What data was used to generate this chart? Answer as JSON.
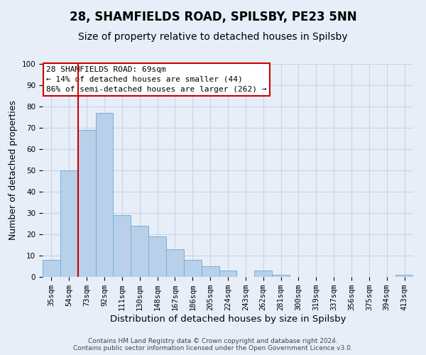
{
  "title": "28, SHAMFIELDS ROAD, SPILSBY, PE23 5NN",
  "subtitle": "Size of property relative to detached houses in Spilsby",
  "xlabel": "Distribution of detached houses by size in Spilsby",
  "ylabel": "Number of detached properties",
  "bar_labels": [
    "35sqm",
    "54sqm",
    "73sqm",
    "92sqm",
    "111sqm",
    "130sqm",
    "148sqm",
    "167sqm",
    "186sqm",
    "205sqm",
    "224sqm",
    "243sqm",
    "262sqm",
    "281sqm",
    "300sqm",
    "319sqm",
    "337sqm",
    "356sqm",
    "375sqm",
    "394sqm",
    "413sqm"
  ],
  "bar_values": [
    8,
    50,
    69,
    77,
    29,
    24,
    19,
    13,
    8,
    5,
    3,
    0,
    3,
    1,
    0,
    0,
    0,
    0,
    0,
    0,
    1
  ],
  "bar_color": "#b8d0ea",
  "bar_edgecolor": "#7aafd4",
  "property_label": "28 SHAMFIELDS ROAD: 69sqm",
  "annotation_line1": "← 14% of detached houses are smaller (44)",
  "annotation_line2": "86% of semi-detached houses are larger (262) →",
  "annotation_box_color": "#ffffff",
  "annotation_box_edgecolor": "#cc0000",
  "vline_color": "#cc0000",
  "vline_x": 1.5,
  "ylim": [
    0,
    100
  ],
  "yticks": [
    0,
    10,
    20,
    30,
    40,
    50,
    60,
    70,
    80,
    90,
    100
  ],
  "grid_color": "#c8d4e8",
  "background_color": "#e8eef8",
  "footer_line1": "Contains HM Land Registry data © Crown copyright and database right 2024.",
  "footer_line2": "Contains public sector information licensed under the Open Government Licence v3.0.",
  "title_fontsize": 12,
  "subtitle_fontsize": 10,
  "tick_fontsize": 7.5,
  "ylabel_fontsize": 9,
  "xlabel_fontsize": 9.5,
  "annotation_fontsize": 8,
  "footer_fontsize": 6.5
}
